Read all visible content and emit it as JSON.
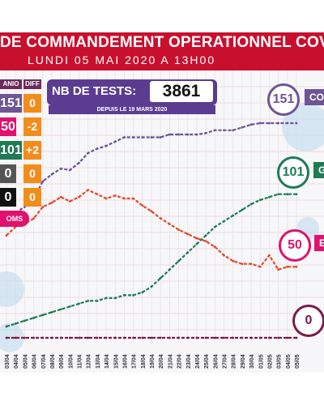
{
  "header": {
    "title": "DE COMMANDEMENT OPERATIONNEL COVID",
    "date": "LUNDI 05 MAI 2020 A 13H00"
  },
  "side_table": {
    "col1_head": "ANIO",
    "col2_head": "DIFF",
    "rows": [
      {
        "value": "151",
        "diff": "0"
      },
      {
        "value": "50",
        "diff": "-2"
      },
      {
        "value": "101",
        "diff": "+2"
      },
      {
        "value": "0",
        "diff": "0"
      },
      {
        "value": "0",
        "diff": "0"
      }
    ],
    "morts_tag": "OMS"
  },
  "tests": {
    "label": "NB DE TESTS:",
    "value": "3861",
    "since": "DEPUIS LE 19 MARS 2020"
  },
  "markers": {
    "total": {
      "value": "151",
      "tag": "CO"
    },
    "gueris": {
      "value": "101",
      "tag": "G"
    },
    "en_cours": {
      "value": "50",
      "tag": "EN"
    },
    "deces": {
      "value": "0"
    }
  },
  "colors": {
    "header": "#c8102e",
    "total": "#6e5595",
    "gueris": "#1f7a55",
    "en_cours": "#e4492f",
    "deces": "#7b1b46",
    "diff": "#f28c1b"
  },
  "chart_data": {
    "type": "line",
    "x": [
      "03/04",
      "04/04",
      "05/04",
      "06/04",
      "07/04",
      "08/04",
      "09/04",
      "10/04",
      "11/04",
      "12/04",
      "13/04",
      "14/04",
      "15/04",
      "16/04",
      "17/04",
      "18/04",
      "19/04",
      "20/04",
      "21/04",
      "22/04",
      "23/04",
      "24/04",
      "25/04",
      "26/04",
      "27/04",
      "28/04",
      "29/04",
      "30/04",
      "01/05",
      "02/05",
      "03/05",
      "04/05",
      "05/05"
    ],
    "series": [
      {
        "values": [
          80,
          88,
          92,
          98,
          110,
          115,
          119,
          118,
          123,
          130,
          133,
          135,
          138,
          141,
          141,
          141,
          141,
          141,
          143,
          143,
          143,
          143,
          144,
          146,
          146,
          146,
          148,
          150,
          151,
          151,
          151,
          151,
          151
        ]
      },
      {
        "values": [
          8,
          10,
          12,
          14,
          16,
          18,
          20,
          22,
          24,
          26,
          26,
          28,
          28,
          30,
          30,
          32,
          36,
          42,
          48,
          54,
          60,
          66,
          72,
          78,
          82,
          86,
          90,
          94,
          97,
          99,
          101,
          101,
          101
        ]
      },
      {
        "values": [
          72,
          78,
          80,
          84,
          92,
          95,
          99,
          96,
          99,
          104,
          101,
          98,
          100,
          98,
          98,
          93,
          89,
          84,
          80,
          76,
          73,
          70,
          68,
          64,
          58,
          54,
          52,
          52,
          50,
          58,
          48,
          50,
          50
        ]
      },
      {
        "values": [
          0,
          0,
          0,
          0,
          0,
          0,
          0,
          0,
          0,
          0,
          0,
          0,
          0,
          0,
          0,
          0,
          0,
          0,
          0,
          0,
          0,
          0,
          0,
          0,
          0,
          0,
          0,
          0,
          0,
          0,
          0,
          0,
          0
        ]
      }
    ]
  }
}
